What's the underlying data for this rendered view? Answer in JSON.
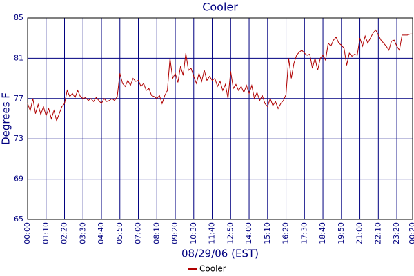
{
  "chart_data": {
    "type": "line",
    "title": "Cooler",
    "x_label": "08/29/06 (EST)",
    "y_label": "Degrees F",
    "x": [
      0,
      10,
      20,
      30,
      40,
      50,
      60,
      70,
      80,
      90,
      100,
      110,
      120,
      130,
      140,
      150,
      160,
      170,
      180,
      190,
      200,
      210,
      220,
      230,
      240,
      250,
      260,
      270,
      280,
      290,
      300,
      310,
      320,
      330,
      340,
      350,
      360,
      370,
      380,
      390,
      400,
      410,
      420,
      430,
      440,
      450,
      460,
      470,
      480,
      490,
      500,
      510,
      520,
      530,
      540,
      550,
      560,
      570,
      580,
      590,
      600,
      610,
      620,
      630,
      640,
      650,
      660,
      670,
      680,
      690,
      700,
      710,
      720,
      730,
      740,
      750,
      760,
      770,
      780,
      790,
      800,
      810,
      820,
      830,
      840,
      850,
      860,
      870,
      880,
      890,
      900,
      910,
      920,
      930,
      940,
      950,
      960,
      970,
      980,
      990,
      1000,
      1010,
      1020,
      1030,
      1040,
      1050,
      1060,
      1070,
      1080,
      1090,
      1100,
      1110,
      1120,
      1130,
      1140,
      1150,
      1160,
      1170,
      1180,
      1190,
      1200,
      1210,
      1220,
      1230,
      1240,
      1250,
      1260,
      1270,
      1280,
      1290,
      1300,
      1310,
      1320,
      1330,
      1340,
      1350,
      1360,
      1370,
      1380,
      1390,
      1400,
      1410,
      1420,
      1430,
      1440,
      1450,
      1460
    ],
    "series": [
      {
        "name": "Cooler",
        "color": "#b00000",
        "values": [
          76.5,
          75.8,
          77,
          75.5,
          76.4,
          75.4,
          76.2,
          75.3,
          76,
          75,
          75.8,
          74.8,
          75.5,
          76.2,
          76.5,
          77.8,
          77.2,
          77.5,
          77.1,
          77.8,
          77.2,
          77,
          77.1,
          76.8,
          77,
          76.7,
          77.1,
          76.8,
          76.5,
          77,
          76.7,
          76.8,
          77,
          76.8,
          77.2,
          79.5,
          78.5,
          78.2,
          78.8,
          78.3,
          79,
          78.7,
          78.8,
          78.2,
          78.5,
          77.8,
          78,
          77.3,
          77.2,
          77,
          77.3,
          76.5,
          77.3,
          77.8,
          81,
          79,
          79.5,
          78.6,
          80.2,
          79.3,
          81.5,
          79.8,
          80,
          79.2,
          78.5,
          79.5,
          78.7,
          79.8,
          78.8,
          79.2,
          78.8,
          79,
          78.2,
          78.7,
          77.8,
          78.4,
          77,
          79.7,
          78,
          78.4,
          77.8,
          78.2,
          77.6,
          78.3,
          77.5,
          78.3,
          77,
          77.6,
          76.8,
          77.3,
          76.5,
          76.2,
          77,
          76.3,
          76.7,
          76,
          76.5,
          76.8,
          77.4,
          81,
          79,
          80.5,
          81.3,
          81.6,
          81.8,
          81.5,
          81.3,
          81.4,
          80,
          81,
          79.8,
          81,
          81.3,
          80.8,
          82.5,
          82.2,
          82.8,
          83.1,
          82.5,
          82.3,
          82,
          80.3,
          81.5,
          81.2,
          81.4,
          81.3,
          83,
          82.2,
          83.2,
          82.5,
          83,
          83.5,
          83.8,
          83.3,
          82.8,
          82.5,
          82.2,
          81.8,
          82.7,
          82.8,
          82.2,
          81.8,
          83.3,
          83.3,
          83.3,
          83.4,
          83.4
        ]
      }
    ],
    "xlim": [
      0,
      1460
    ],
    "xticks": [
      {
        "value": 0,
        "label": "00:00"
      },
      {
        "value": 70,
        "label": "01:10"
      },
      {
        "value": 140,
        "label": "02:20"
      },
      {
        "value": 210,
        "label": "03:30"
      },
      {
        "value": 280,
        "label": "04:40"
      },
      {
        "value": 350,
        "label": "05:50"
      },
      {
        "value": 420,
        "label": "07:00"
      },
      {
        "value": 490,
        "label": "08:10"
      },
      {
        "value": 560,
        "label": "09:20"
      },
      {
        "value": 630,
        "label": "10:30"
      },
      {
        "value": 700,
        "label": "11:40"
      },
      {
        "value": 770,
        "label": "12:50"
      },
      {
        "value": 840,
        "label": "14:00"
      },
      {
        "value": 910,
        "label": "15:10"
      },
      {
        "value": 980,
        "label": "16:20"
      },
      {
        "value": 1050,
        "label": "17:30"
      },
      {
        "value": 1120,
        "label": "18:40"
      },
      {
        "value": 1190,
        "label": "19:50"
      },
      {
        "value": 1260,
        "label": "21:00"
      },
      {
        "value": 1330,
        "label": "22:10"
      },
      {
        "value": 1400,
        "label": "23:20"
      },
      {
        "value": 1460,
        "label": "00:20"
      }
    ],
    "ylim": [
      65,
      85
    ],
    "yticks": [
      65,
      69,
      73,
      77,
      81,
      85
    ],
    "grid": true,
    "grid_color": "#000080",
    "legend": "bottom"
  }
}
